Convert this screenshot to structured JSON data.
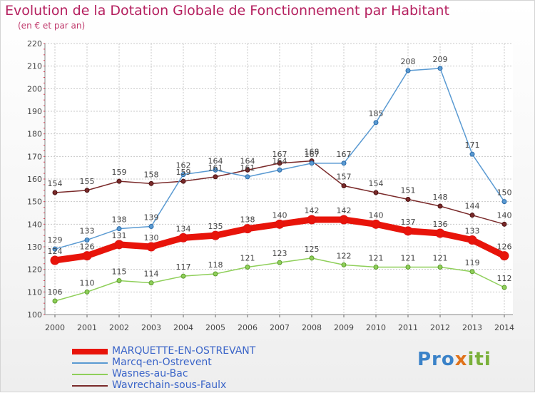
{
  "chart_data": {
    "type": "line",
    "title": "Evolution de la Dotation Globale de Fonctionnement par Habitant",
    "subtitle": "(en € et par an)",
    "xlabel": "",
    "ylabel": "",
    "ylim": [
      100,
      220
    ],
    "yticks": [
      100,
      110,
      120,
      130,
      140,
      150,
      160,
      170,
      180,
      190,
      200,
      210,
      220
    ],
    "grid": true,
    "categories": [
      "2000",
      "2001",
      "2002",
      "2003",
      "2004",
      "2005",
      "2006",
      "2007",
      "2008",
      "2009",
      "2010",
      "2011",
      "2012",
      "2013",
      "2014"
    ],
    "series": [
      {
        "name": "MARQUETTE-EN-OSTREVANT",
        "color": "#e8140a",
        "values": [
          124,
          126,
          131,
          130,
          134,
          135,
          138,
          140,
          142,
          142,
          140,
          137,
          136,
          133,
          126
        ]
      },
      {
        "name": "Marcq-en-Ostrevent",
        "color": "#5a9ad2",
        "values": [
          129,
          133,
          138,
          139,
          162,
          164,
          161,
          164,
          167,
          167,
          185,
          208,
          209,
          171,
          150
        ],
        "labels": [
          "129",
          "133",
          "138",
          "139",
          "162",
          "164",
          "161",
          "164",
          "167",
          "167",
          "185",
          "208",
          "209",
          "171",
          "150"
        ]
      },
      {
        "name": "Wasnes-au-Bac",
        "color": "#8fcf5a",
        "values": [
          106,
          110,
          115,
          114,
          117,
          118,
          121,
          123,
          125,
          122,
          121,
          121,
          121,
          119,
          112
        ]
      },
      {
        "name": "Wavrechain-sous-Faulx",
        "color": "#7a2a2a",
        "values": [
          154,
          155,
          159,
          158,
          159,
          161,
          164,
          167,
          168,
          157,
          154,
          151,
          148,
          144,
          140
        ]
      }
    ]
  },
  "legend": {
    "items": [
      {
        "label": "MARQUETTE-EN-OSTREVANT",
        "color": "#e8140a"
      },
      {
        "label": "Marcq-en-Ostrevent",
        "color": "#5a9ad2"
      },
      {
        "label": "Wasnes-au-Bac",
        "color": "#8fcf5a"
      },
      {
        "label": "Wavrechain-sous-Faulx",
        "color": "#7a2a2a"
      }
    ]
  },
  "logo": {
    "part1": "Pro",
    "part2": "x",
    "part3": "iti"
  }
}
